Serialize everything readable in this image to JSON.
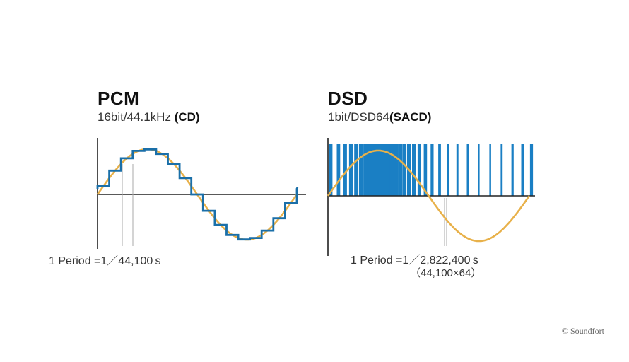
{
  "pcm": {
    "title": "PCM",
    "subtitle_main": "16bit/44.1kHz",
    "subtitle_tag": "(CD)",
    "period_prefix": "1 Period =1／",
    "period_value": "44,100",
    "period_unit": "s"
  },
  "dsd": {
    "title": "DSD",
    "subtitle_main": "1bit/DSD64",
    "subtitle_tag": "(SACD)",
    "period_prefix": "1 Period =1／",
    "period_value": "2,822,400",
    "period_unit": "s",
    "period_note": "（44,100×64）"
  },
  "copyright": "© Soundfort",
  "colors": {
    "sine": "#e8b14a",
    "pcm_step": "#1a6fa8",
    "dsd_pulse": "#1a7fc4",
    "axis": "#222222",
    "guide": "#aaaaaa"
  }
}
